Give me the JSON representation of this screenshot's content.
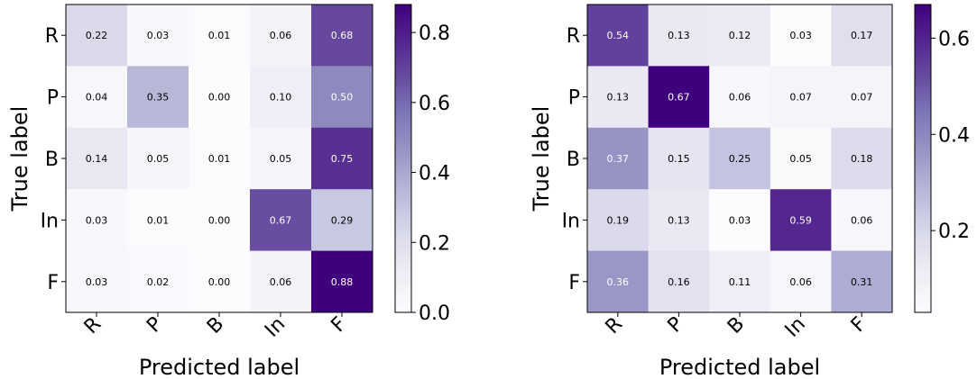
{
  "chart_data": [
    {
      "type": "heatmap",
      "xlabel": "Predicted label",
      "ylabel": "True label",
      "categories_x": [
        "R",
        "P",
        "B",
        "In",
        "F"
      ],
      "categories_y": [
        "R",
        "P",
        "B",
        "In",
        "F"
      ],
      "values": [
        [
          0.22,
          0.03,
          0.01,
          0.06,
          0.68
        ],
        [
          0.04,
          0.35,
          0.0,
          0.1,
          0.5
        ],
        [
          0.14,
          0.05,
          0.01,
          0.05,
          0.75
        ],
        [
          0.03,
          0.01,
          0.0,
          0.67,
          0.29
        ],
        [
          0.03,
          0.02,
          0.0,
          0.06,
          0.88
        ]
      ],
      "colorbar": {
        "min": 0.0,
        "max": 0.88,
        "ticks": [
          0.0,
          0.2,
          0.4,
          0.6,
          0.8
        ],
        "tick_labels": [
          "0.0",
          "0.2",
          "0.4",
          "0.6",
          "0.8"
        ]
      },
      "colormap": "Purples"
    },
    {
      "type": "heatmap",
      "xlabel": "Predicted label",
      "ylabel": "True label",
      "categories_x": [
        "R",
        "P",
        "B",
        "In",
        "F"
      ],
      "categories_y": [
        "R",
        "P",
        "B",
        "In",
        "F"
      ],
      "values": [
        [
          0.54,
          0.13,
          0.12,
          0.03,
          0.17
        ],
        [
          0.13,
          0.67,
          0.06,
          0.07,
          0.07
        ],
        [
          0.37,
          0.15,
          0.25,
          0.05,
          0.18
        ],
        [
          0.19,
          0.13,
          0.03,
          0.59,
          0.06
        ],
        [
          0.36,
          0.16,
          0.11,
          0.06,
          0.31
        ]
      ],
      "colorbar": {
        "min": 0.03,
        "max": 0.67,
        "ticks": [
          0.2,
          0.4,
          0.6
        ],
        "tick_labels": [
          "0.2",
          "0.4",
          "0.6"
        ]
      },
      "colormap": "Purples"
    }
  ]
}
